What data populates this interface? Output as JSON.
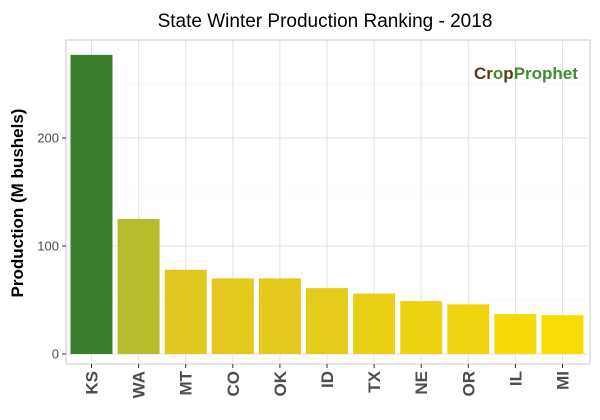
{
  "chart_data": {
    "type": "bar",
    "title": "State Winter  Production Ranking - 2018",
    "xlabel": "",
    "ylabel": "Production (M bushels)",
    "categories": [
      "KS",
      "WA",
      "MT",
      "CO",
      "OK",
      "ID",
      "TX",
      "NE",
      "OR",
      "IL",
      "MI"
    ],
    "values": [
      277,
      125,
      78,
      70,
      70,
      61,
      56,
      49,
      46,
      37,
      36
    ],
    "bar_colors": [
      "#3a7d2c",
      "#b5bb2a",
      "#e0c71f",
      "#e3c91d",
      "#e3c91d",
      "#e6cc1a",
      "#e9cf16",
      "#ecd212",
      "#efd40f",
      "#f6da07",
      "#f8db05"
    ],
    "ylim": [
      0,
      290
    ],
    "yticks": [
      0,
      100,
      200
    ],
    "grid": true,
    "legend": "none",
    "logo": {
      "part1": "Cr",
      "part2": "p",
      "part3": "Prophet",
      "color_dark": "#5a3a1f",
      "color_green": "#3d8c2f"
    }
  }
}
